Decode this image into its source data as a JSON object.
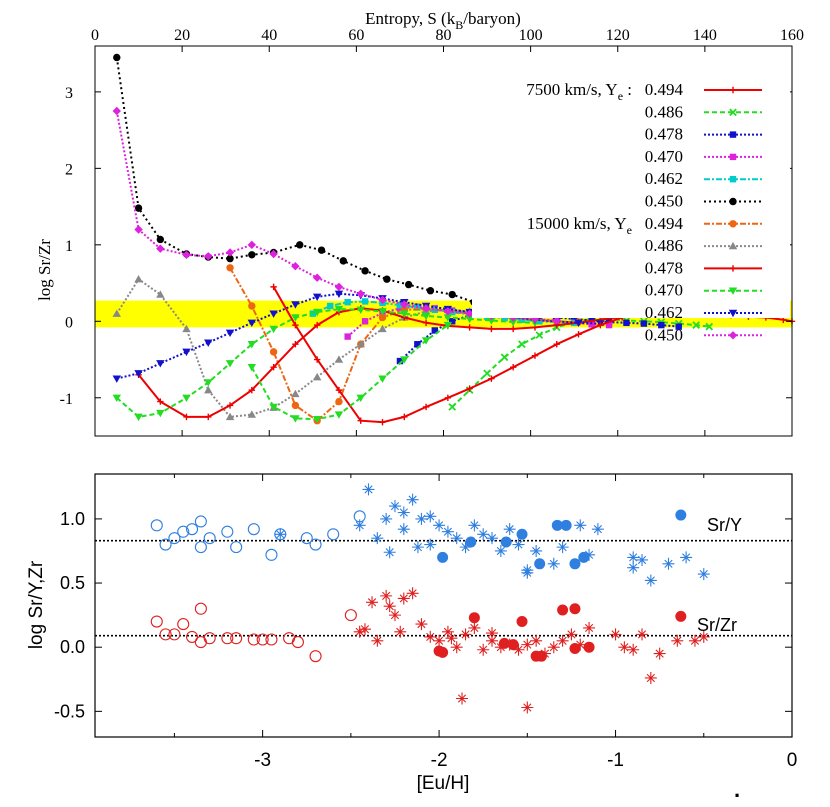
{
  "chart_data": [
    {
      "type": "line",
      "title": "",
      "xlabel": "Entropy, S (k_B/baryon)",
      "xlabel_main": "Entropy, S (k",
      "xlabel_sub": "B",
      "xlabel_end": "/baryon)",
      "ylabel": "log Sr/Zr",
      "xlim": [
        0,
        160
      ],
      "ylim": [
        -1.5,
        3.6
      ],
      "xticks": [
        "0",
        "20",
        "40",
        "60",
        "80",
        "100",
        "120",
        "140",
        "160"
      ],
      "yticks": [
        "-1",
        "0",
        "1",
        "2",
        "3"
      ],
      "band": {
        "y0": -0.08,
        "y1": 0.27,
        "color": "#ffff00"
      },
      "group_labels": [
        {
          "prefix": "7500 km/s, Y",
          "sub": "e",
          "suffix": " :"
        },
        {
          "prefix": "15000 km/s, Y",
          "sub": "e",
          "suffix": ""
        }
      ],
      "series": [
        {
          "name": "0.494",
          "group": 0,
          "color": "#ee0000",
          "dash": "",
          "marker": "plus",
          "x": [
            126,
            130,
            134,
            138,
            142,
            146,
            150,
            154,
            158,
            160
          ],
          "y": [
            0.15,
            0.13,
            0.12,
            0.1,
            0.09,
            0.08,
            0.06,
            0.05,
            0.02,
            0.0
          ]
        },
        {
          "name": "0.486",
          "group": 0,
          "color": "#22dd22",
          "dash": "5,3",
          "marker": "x",
          "x": [
            82,
            86,
            90,
            94,
            98,
            102,
            106,
            110,
            114,
            118,
            122,
            126,
            130,
            134,
            138,
            141
          ],
          "y": [
            -1.12,
            -0.9,
            -0.68,
            -0.47,
            -0.3,
            -0.18,
            -0.08,
            -0.01,
            0.03,
            0.03,
            0.01,
            0.0,
            -0.01,
            -0.03,
            -0.05,
            -0.07
          ]
        },
        {
          "name": "0.478",
          "group": 0,
          "color": "#1111cc",
          "dash": "2,2",
          "marker": "square",
          "x": [
            70,
            74,
            78,
            82,
            86,
            90,
            94,
            98,
            102,
            106,
            110,
            114,
            118,
            122,
            126,
            130,
            134
          ],
          "y": [
            -0.52,
            -0.3,
            -0.12,
            0.0,
            0.08,
            0.11,
            0.11,
            0.09,
            0.07,
            0.05,
            0.03,
            0.01,
            -0.01,
            -0.02,
            -0.03,
            -0.05,
            -0.07
          ]
        },
        {
          "name": "0.470",
          "group": 0,
          "color": "#dd22dd",
          "dash": "2,2",
          "marker": "square",
          "x": [
            58,
            62,
            66,
            70,
            74,
            78,
            82,
            86,
            90,
            94,
            98,
            102,
            106,
            110,
            114,
            118
          ],
          "y": [
            -0.2,
            0.0,
            0.11,
            0.17,
            0.19,
            0.17,
            0.14,
            0.11,
            0.08,
            0.05,
            0.03,
            0.01,
            -0.01,
            -0.02,
            -0.04,
            -0.05
          ]
        },
        {
          "name": "0.462",
          "group": 0,
          "color": "#00cccc",
          "dash": "6,2,2,2",
          "marker": "square",
          "x": [
            50,
            54,
            58,
            62,
            66,
            70,
            74,
            78,
            82,
            86,
            90,
            94,
            98,
            102,
            106,
            110
          ],
          "y": [
            0.1,
            0.2,
            0.25,
            0.26,
            0.24,
            0.21,
            0.18,
            0.15,
            0.12,
            0.09,
            0.06,
            0.04,
            0.02,
            0.0,
            -0.01,
            -0.02
          ]
        },
        {
          "name": "0.450",
          "group": 0,
          "color": "#000000",
          "dash": "2,3",
          "marker": "circle",
          "x": [
            5,
            10,
            15,
            21,
            26,
            31,
            36,
            41,
            47,
            52,
            57,
            62,
            67,
            72,
            77,
            82,
            87,
            92,
            97,
            102
          ],
          "y": [
            3.45,
            1.48,
            1.07,
            0.88,
            0.84,
            0.82,
            0.87,
            0.9,
            1.0,
            0.93,
            0.79,
            0.66,
            0.55,
            0.48,
            0.4,
            0.35,
            0.25,
            0.19,
            0.12,
            0.07
          ]
        },
        {
          "name": "0.494",
          "group": 1,
          "color": "#ee6611",
          "dash": "6,2,2,2",
          "marker": "circle",
          "x": [
            31,
            36,
            41,
            46,
            51,
            56,
            61,
            66,
            71,
            76,
            81,
            86,
            91,
            96,
            101,
            106,
            111
          ],
          "y": [
            0.7,
            0.2,
            -0.4,
            -1.1,
            -1.3,
            -1.05,
            -0.3,
            0.05,
            0.15,
            0.16,
            0.14,
            0.11,
            0.08,
            0.05,
            0.02,
            0.0,
            -0.01
          ]
        },
        {
          "name": "0.486",
          "group": 1,
          "color": "#888888",
          "dash": "2,2",
          "marker": "triangle",
          "x": [
            5,
            10,
            15,
            21,
            26,
            31,
            36,
            41,
            46,
            51,
            56,
            61,
            66,
            71,
            76,
            81,
            86,
            91,
            96
          ],
          "y": [
            0.1,
            0.55,
            0.35,
            -0.1,
            -0.9,
            -1.25,
            -1.22,
            -1.13,
            -0.95,
            -0.73,
            -0.5,
            -0.3,
            -0.1,
            0.05,
            0.13,
            0.15,
            0.13,
            0.1,
            0.07
          ]
        },
        {
          "name": "0.478",
          "group": 1,
          "color": "#ee0000",
          "dash": "",
          "marker": "plus",
          "x": [
            10,
            15,
            21,
            26,
            31,
            36,
            41,
            46,
            51,
            56,
            61,
            66,
            71,
            76,
            81,
            86,
            91,
            96,
            101,
            106,
            111,
            116,
            121
          ],
          "y": [
            -0.7,
            -1.05,
            -1.25,
            -1.25,
            -1.1,
            -0.9,
            -0.6,
            -0.3,
            -0.05,
            0.12,
            0.17,
            0.14,
            0.05,
            -0.02,
            -0.06,
            -0.08,
            -0.1,
            -0.1,
            -0.08,
            -0.05,
            -0.02,
            0.02,
            0.06
          ]
        },
        {
          "name": "0.470",
          "group": 1,
          "color": "#22dd22",
          "dash": "5,3",
          "marker": "triangle-down",
          "x": [
            5,
            10,
            15,
            21,
            26,
            31,
            36,
            41,
            46,
            51,
            56,
            61,
            66,
            71,
            76,
            81,
            86,
            91,
            96,
            101
          ],
          "y": [
            -1.0,
            -1.25,
            -1.2,
            -1.0,
            -0.8,
            -0.55,
            -0.3,
            -0.1,
            0.05,
            0.12,
            0.16,
            0.15,
            0.13,
            0.1,
            0.07,
            0.05,
            0.03,
            0.01,
            -0.01,
            -0.02
          ]
        },
        {
          "name": "0.462",
          "group": 1,
          "color": "#1111cc",
          "dash": "2,2",
          "marker": "triangle-down",
          "x": [
            5,
            10,
            15,
            21,
            26,
            31,
            36,
            41,
            46,
            51,
            56,
            61,
            66,
            71,
            76,
            81,
            86,
            91,
            96,
            101,
            106,
            111,
            116
          ],
          "y": [
            -0.75,
            -0.68,
            -0.55,
            -0.4,
            -0.28,
            -0.15,
            -0.02,
            0.1,
            0.22,
            0.32,
            0.36,
            0.34,
            0.3,
            0.25,
            0.2,
            0.16,
            0.12,
            0.08,
            0.05,
            0.02,
            0.0,
            -0.02,
            -0.03
          ]
        },
        {
          "name": "0.450",
          "group": 1,
          "color": "#dd22dd",
          "dash": "2,2",
          "marker": "diamond",
          "x": [
            5,
            10,
            15,
            21,
            26,
            31,
            36,
            41,
            46,
            51,
            56,
            61,
            66,
            71,
            76,
            81,
            86,
            91,
            96,
            101,
            106
          ],
          "y": [
            2.75,
            1.2,
            0.95,
            0.87,
            0.85,
            0.9,
            1.0,
            0.88,
            0.72,
            0.57,
            0.45,
            0.36,
            0.28,
            0.22,
            0.17,
            0.13,
            0.1,
            0.07,
            0.05,
            0.03,
            0.01
          ]
        }
      ],
      "extra_series": [
        {
          "name": "0.478 (7500 km/s, low-S branch)",
          "color": "#ee0000",
          "dash": "",
          "marker": "plus",
          "x": [
            41,
            46,
            51,
            56,
            61,
            66,
            71,
            76,
            81,
            86,
            91,
            96,
            101,
            106,
            111,
            116,
            121,
            126
          ],
          "y": [
            0.45,
            -0.05,
            -0.5,
            -0.9,
            -1.3,
            -1.32,
            -1.25,
            -1.12,
            -1.0,
            -0.88,
            -0.75,
            -0.6,
            -0.45,
            -0.3,
            -0.17,
            -0.05,
            0.05,
            0.13
          ]
        },
        {
          "name": "0.470 (7500 km/s, low-S branch)",
          "color": "#22dd22",
          "dash": "5,3",
          "marker": "triangle-down",
          "x": [
            36,
            41,
            46,
            51,
            56,
            61,
            66,
            71,
            76,
            81
          ],
          "y": [
            -0.6,
            -1.12,
            -1.27,
            -1.28,
            -1.22,
            -1.0,
            -0.75,
            -0.5,
            -0.25,
            -0.05
          ]
        }
      ]
    },
    {
      "type": "scatter",
      "title": "",
      "xlabel": "[Eu/H]",
      "ylabel": "log Sr/Y,Zr",
      "xlim": [
        -3.95,
        0.0
      ],
      "ylim": [
        -0.7,
        1.35
      ],
      "xticks": [
        "-3",
        "-2",
        "-1",
        "0"
      ],
      "xtick_values": [
        -3,
        -2,
        -1,
        0
      ],
      "yticks": [
        "-0.5",
        "0.0",
        "0.5",
        "1.0"
      ],
      "ytick_values": [
        -0.5,
        0.0,
        0.5,
        1.0
      ],
      "reference_lines": [
        {
          "label": "Sr/Y",
          "y": 0.83
        },
        {
          "label": "Sr/Zr",
          "y": 0.09
        }
      ],
      "series": [
        {
          "name": "Sr/Y open circles",
          "color": "#2f7fe0",
          "marker": "open-circle",
          "x": [
            -3.6,
            -3.5,
            -3.45,
            -3.35,
            -3.3,
            -3.2,
            -3.05,
            -2.9,
            -2.75,
            -2.6,
            -2.45,
            -3.55,
            -3.35,
            -3.15,
            -2.95,
            -2.7,
            -3.4
          ],
          "y": [
            0.95,
            0.85,
            0.9,
            0.98,
            0.85,
            0.9,
            0.92,
            0.88,
            0.85,
            0.88,
            1.02,
            0.8,
            0.78,
            0.78,
            0.72,
            0.8,
            0.92
          ]
        },
        {
          "name": "Sr/Y asterisks",
          "color": "#2f7fe0",
          "marker": "asterisk",
          "x": [
            -2.9,
            -2.45,
            -2.35,
            -2.3,
            -2.25,
            -2.2,
            -2.15,
            -2.1,
            -2.05,
            -2.0,
            -1.95,
            -1.9,
            -1.85,
            -1.8,
            -1.75,
            -1.7,
            -1.6,
            -1.55,
            -1.5,
            -1.45,
            -1.35,
            -1.3,
            -1.2,
            -1.15,
            -1.1,
            -0.9,
            -0.85,
            -0.8,
            -0.7,
            -0.6,
            -0.5,
            -2.4,
            -2.2,
            -2.05,
            -1.5,
            -0.9,
            -2.28,
            -2.12,
            -1.65
          ],
          "y": [
            0.88,
            0.95,
            0.85,
            1.0,
            1.1,
            0.92,
            1.15,
            1.0,
            1.02,
            0.95,
            0.9,
            0.85,
            0.78,
            0.95,
            0.88,
            0.85,
            0.92,
            0.8,
            0.6,
            0.75,
            0.65,
            0.78,
            0.95,
            0.72,
            0.92,
            0.7,
            0.68,
            0.52,
            0.65,
            0.7,
            0.57,
            1.23,
            1.05,
            0.8,
            0.58,
            0.62,
            0.74,
            0.78,
            0.75
          ]
        },
        {
          "name": "Sr/Y filled circles",
          "color": "#2f7fe0",
          "marker": "filled-circle",
          "x": [
            -1.98,
            -1.82,
            -1.62,
            -1.53,
            -1.43,
            -1.33,
            -1.28,
            -1.23,
            -1.18,
            -0.63
          ],
          "y": [
            0.7,
            0.82,
            0.82,
            0.88,
            0.65,
            0.95,
            0.95,
            0.65,
            0.7,
            1.03
          ]
        },
        {
          "name": "Sr/Zr open circles",
          "color": "#e02020",
          "marker": "open-circle",
          "x": [
            -3.6,
            -3.5,
            -3.45,
            -3.35,
            -3.3,
            -3.2,
            -3.05,
            -2.95,
            -2.85,
            -2.7,
            -2.5,
            -3.55,
            -3.35,
            -3.15,
            -3.0,
            -2.8,
            -3.4
          ],
          "y": [
            0.2,
            0.1,
            0.18,
            0.3,
            0.07,
            0.07,
            0.06,
            0.06,
            0.07,
            -0.07,
            0.25,
            0.1,
            0.04,
            0.07,
            0.06,
            0.04,
            0.08
          ]
        },
        {
          "name": "Sr/Zr asterisks",
          "color": "#e02020",
          "marker": "asterisk",
          "x": [
            -2.45,
            -2.38,
            -2.35,
            -2.3,
            -2.25,
            -2.2,
            -2.15,
            -2.1,
            -2.05,
            -2.0,
            -1.95,
            -1.9,
            -1.87,
            -1.85,
            -1.8,
            -1.75,
            -1.7,
            -1.65,
            -1.6,
            -1.55,
            -1.5,
            -1.45,
            -1.4,
            -1.35,
            -1.3,
            -1.25,
            -1.2,
            -1.15,
            -1.0,
            -0.95,
            -0.85,
            -0.8,
            -0.75,
            -0.65,
            -0.55,
            -0.5,
            -2.42,
            -2.28,
            -1.5,
            -0.9,
            -2.22,
            -1.93,
            -1.7
          ],
          "y": [
            0.12,
            0.35,
            0.05,
            0.4,
            0.25,
            0.38,
            0.42,
            0.18,
            0.08,
            0.05,
            0.12,
            0.0,
            -0.4,
            0.1,
            0.15,
            -0.02,
            0.05,
            0.0,
            0.02,
            -0.02,
            -0.47,
            0.05,
            -0.05,
            0.0,
            0.05,
            0.1,
            0.02,
            0.15,
            0.1,
            0.0,
            0.1,
            -0.24,
            -0.05,
            0.05,
            0.05,
            0.08,
            0.14,
            0.32,
            0.02,
            -0.02,
            0.12,
            0.07,
            0.11
          ]
        },
        {
          "name": "Sr/Zr filled circles",
          "color": "#e02020",
          "marker": "filled-circle",
          "x": [
            -1.98,
            -1.8,
            -1.63,
            -1.53,
            -1.45,
            -1.3,
            -1.23,
            -1.23,
            -1.15,
            -0.63,
            -1.58,
            -2.0,
            -1.42
          ],
          "y": [
            -0.04,
            0.23,
            0.03,
            0.2,
            -0.07,
            0.29,
            0.3,
            -0.01,
            0.0,
            0.24,
            0.02,
            -0.03,
            -0.07
          ]
        }
      ],
      "annotations": [
        "Sr/Y",
        "Sr/Zr"
      ],
      "footnote": "."
    }
  ]
}
